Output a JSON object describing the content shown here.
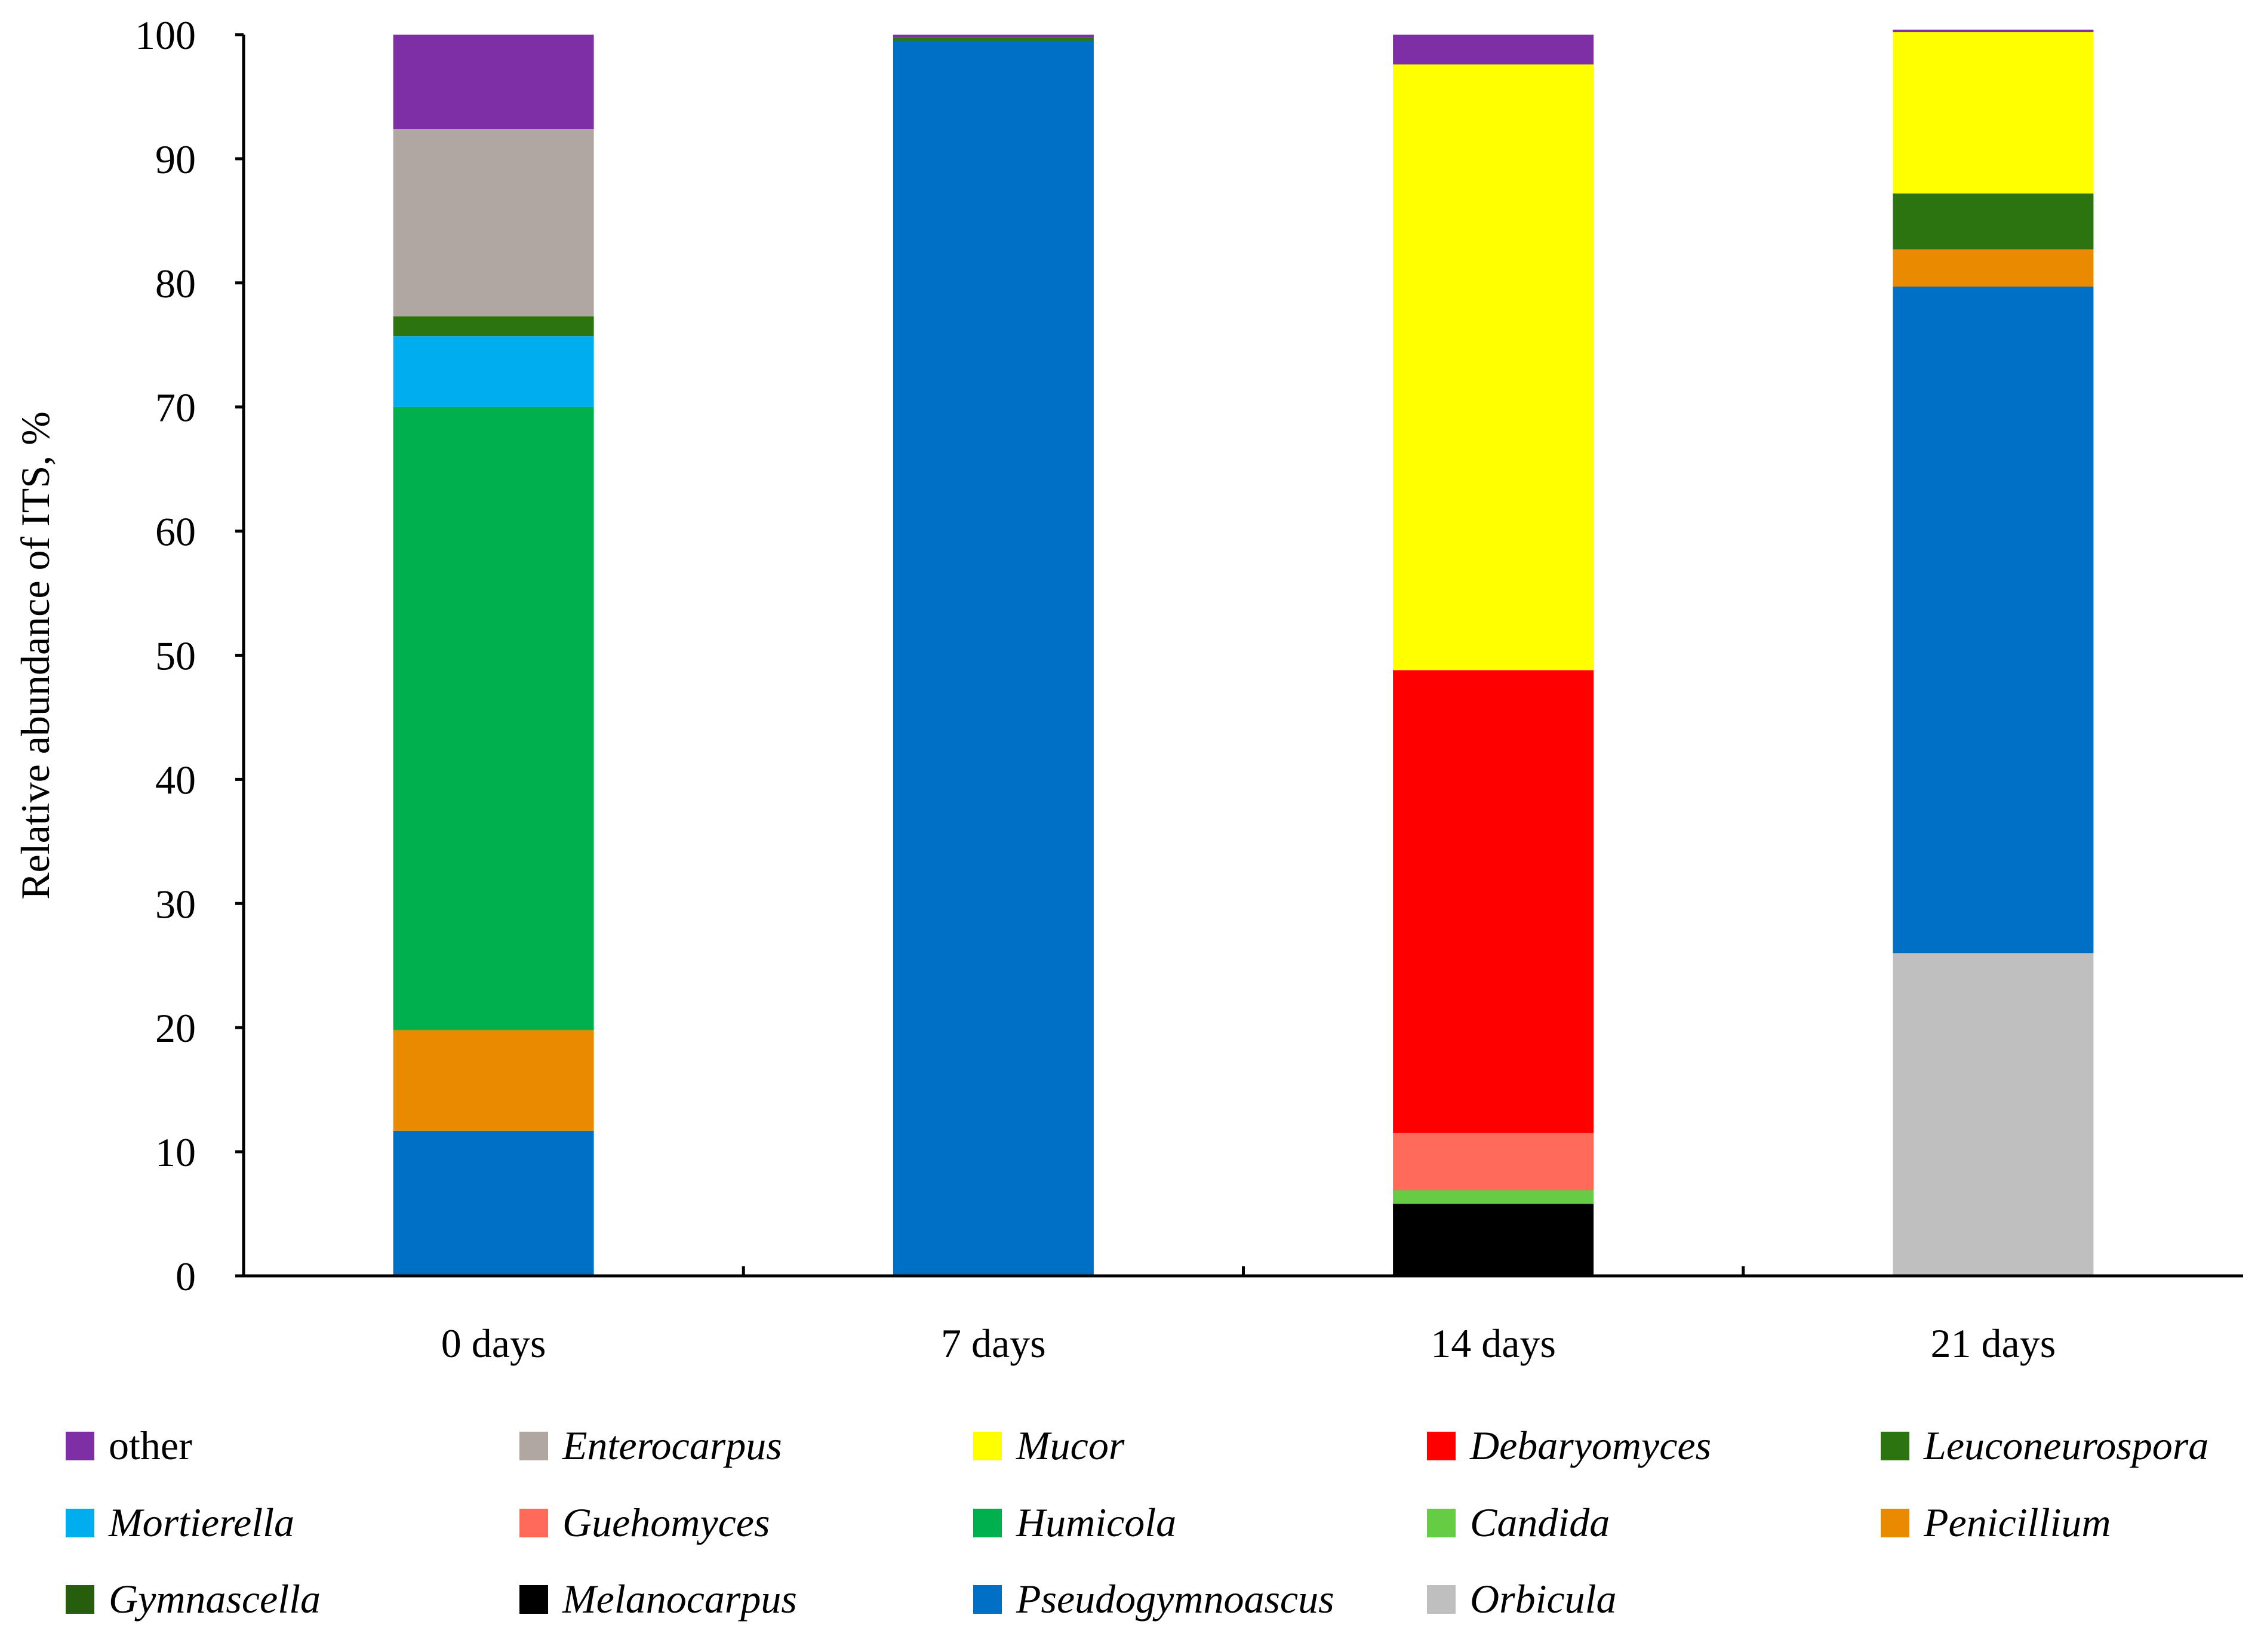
{
  "chart_data": {
    "type": "bar",
    "stacked": true,
    "title": "",
    "xlabel": "",
    "ylabel": "Relative abundance of ITS, %",
    "ylim": [
      0,
      100
    ],
    "yticks": [
      0,
      10,
      20,
      30,
      40,
      50,
      60,
      70,
      80,
      90,
      100
    ],
    "grid": false,
    "legend_position": "bottom",
    "categories": [
      "0 days",
      "7 days",
      "14 days",
      "21 days"
    ],
    "series": [
      {
        "name": "Orbicula",
        "italic": true,
        "color": "#BFBFBF",
        "values": [
          0,
          0,
          0,
          26
        ]
      },
      {
        "name": "Melanocarpus",
        "italic": true,
        "color": "#000000",
        "values": [
          0,
          0,
          5.8,
          0
        ]
      },
      {
        "name": "Candida",
        "italic": true,
        "color": "#66CC44",
        "values": [
          0,
          0,
          1.1,
          0
        ]
      },
      {
        "name": "Guehomyces",
        "italic": true,
        "color": "#FF6A5A",
        "values": [
          0,
          0,
          4.6,
          0
        ]
      },
      {
        "name": "Pseudogymnoascus",
        "italic": true,
        "color": "#0070C6",
        "values": [
          11.7,
          99.5,
          0,
          53.7
        ]
      },
      {
        "name": "Penicillium",
        "italic": true,
        "color": "#E98A00",
        "values": [
          8.1,
          0,
          0,
          3
        ]
      },
      {
        "name": "Humicola",
        "italic": true,
        "color": "#00B04E",
        "values": [
          50.2,
          0,
          0,
          0
        ]
      },
      {
        "name": "Mortierella",
        "italic": true,
        "color": "#00AEEF",
        "values": [
          5.7,
          0,
          0,
          0
        ]
      },
      {
        "name": "Gymnascella",
        "italic": true,
        "color": "#275E0E",
        "values": [
          0,
          0,
          0,
          0
        ]
      },
      {
        "name": "Leuconeurospora",
        "italic": true,
        "color": "#2C7410",
        "values": [
          1.6,
          0.3,
          0,
          4.5
        ]
      },
      {
        "name": "Debaryomyces",
        "italic": true,
        "color": "#FF0000",
        "values": [
          0,
          0,
          37.3,
          0
        ]
      },
      {
        "name": "Mucor",
        "italic": true,
        "color": "#FFFF00",
        "values": [
          0,
          0,
          48.8,
          13
        ]
      },
      {
        "name": "Enterocarpus",
        "italic": true,
        "color": "#B0A7A3",
        "values": [
          15.1,
          0,
          0,
          0
        ]
      },
      {
        "name": "other",
        "italic": false,
        "color": "#7F2FA6",
        "values": [
          7.6,
          0.2,
          2.4,
          0.2
        ]
      }
    ],
    "legend_order": [
      "other",
      "Enterocarpus",
      "Mucor",
      "Debaryomyces",
      "Leuconeurospora",
      "Mortierella",
      "Guehomyces",
      "Humicola",
      "Candida",
      "Penicillium",
      "Gymnascella",
      "Melanocarpus",
      "Pseudogymnoascus",
      "Orbicula"
    ]
  }
}
